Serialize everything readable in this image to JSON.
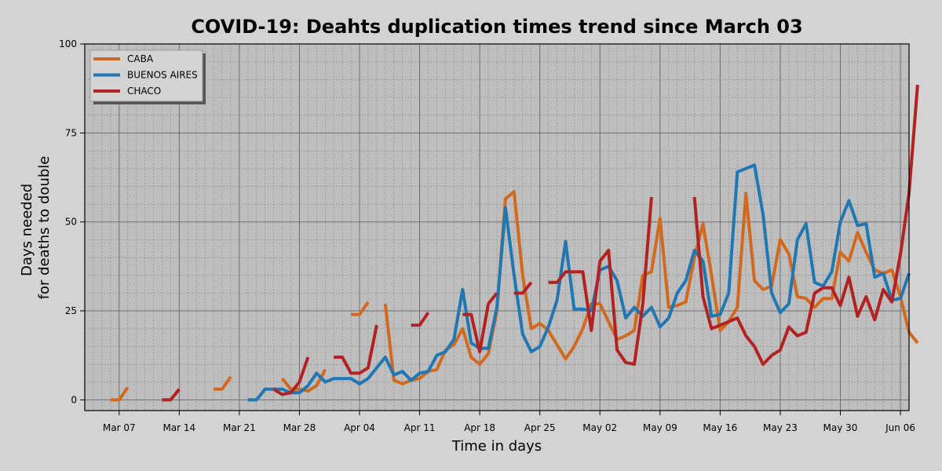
{
  "chart_data": {
    "type": "line",
    "title": "COVID-19: Deahts duplication times trend since March 03",
    "xlabel": "Time in days",
    "ylabel": [
      "Days needed",
      "for deaths to double"
    ],
    "x_start": "2020-03-03",
    "x_end": "2020-06-07",
    "ylim": [
      -3,
      100
    ],
    "yticks": [
      0,
      25,
      50,
      75,
      100
    ],
    "xticks": [
      {
        "date": "2020-03-07",
        "label": "Mar 07"
      },
      {
        "date": "2020-03-14",
        "label": "Mar 14"
      },
      {
        "date": "2020-03-21",
        "label": "Mar 21"
      },
      {
        "date": "2020-03-28",
        "label": "Mar 28"
      },
      {
        "date": "2020-04-04",
        "label": "Apr 04"
      },
      {
        "date": "2020-04-11",
        "label": "Apr 11"
      },
      {
        "date": "2020-04-18",
        "label": "Apr 18"
      },
      {
        "date": "2020-04-25",
        "label": "Apr 25"
      },
      {
        "date": "2020-05-02",
        "label": "May 02"
      },
      {
        "date": "2020-05-09",
        "label": "May 09"
      },
      {
        "date": "2020-05-16",
        "label": "May 16"
      },
      {
        "date": "2020-05-23",
        "label": "May 23"
      },
      {
        "date": "2020-05-30",
        "label": "May 30"
      },
      {
        "date": "2020-06-06",
        "label": "Jun 06"
      }
    ],
    "grid": true,
    "legend_position": "top-left",
    "series": [
      {
        "name": "CABA",
        "color": "#d2691e",
        "points": [
          [
            3,
            0
          ],
          [
            4,
            0
          ],
          [
            5,
            3.5
          ],
          [
            null,
            null
          ],
          [
            15,
            3
          ],
          [
            16,
            3
          ],
          [
            17,
            6.5
          ],
          [
            null,
            null
          ],
          [
            23,
            6
          ],
          [
            24,
            3
          ],
          [
            25,
            3
          ],
          [
            26,
            2.5
          ],
          [
            27,
            4
          ],
          [
            28,
            8.5
          ],
          [
            null,
            null
          ],
          [
            31,
            24
          ],
          [
            32,
            24
          ],
          [
            33,
            27.5
          ],
          [
            null,
            null
          ],
          [
            35,
            27
          ],
          [
            36,
            5.5
          ],
          [
            37,
            4.5
          ],
          [
            38,
            5.5
          ],
          [
            39,
            6
          ],
          [
            40,
            8
          ],
          [
            41,
            8.5
          ],
          [
            42,
            14
          ],
          [
            43,
            15.5
          ],
          [
            44,
            20
          ],
          [
            45,
            12
          ],
          [
            46,
            10
          ],
          [
            47,
            13
          ],
          [
            48,
            25
          ],
          [
            49,
            56.5
          ],
          [
            50,
            58.5
          ],
          [
            51,
            35
          ],
          [
            52,
            20
          ],
          [
            53,
            21.5
          ],
          [
            54,
            19.5
          ],
          [
            55,
            15.5
          ],
          [
            56,
            11.5
          ],
          [
            57,
            15
          ],
          [
            58,
            20
          ],
          [
            59,
            27
          ],
          [
            60,
            27
          ],
          [
            61,
            22
          ],
          [
            62,
            17
          ],
          [
            63,
            18
          ],
          [
            64,
            19.5
          ],
          [
            65,
            35
          ],
          [
            66,
            36
          ],
          [
            67,
            51
          ],
          [
            68,
            26
          ],
          [
            69,
            26.5
          ],
          [
            70,
            27.5
          ],
          [
            71,
            40
          ],
          [
            72,
            49.5
          ],
          [
            73,
            35
          ],
          [
            74,
            19.5
          ],
          [
            75,
            22
          ],
          [
            76,
            26
          ],
          [
            77,
            58
          ],
          [
            78,
            33.5
          ],
          [
            79,
            31
          ],
          [
            80,
            32
          ],
          [
            81,
            45
          ],
          [
            82,
            41
          ],
          [
            83,
            29
          ],
          [
            84,
            28.5
          ],
          [
            85,
            26
          ],
          [
            86,
            28.5
          ],
          [
            87,
            28.5
          ],
          [
            88,
            41.5
          ],
          [
            89,
            39
          ],
          [
            90,
            47
          ],
          [
            91,
            41.5
          ],
          [
            92,
            36.5
          ],
          [
            93,
            35.5
          ],
          [
            94,
            36.5
          ],
          [
            95,
            29
          ],
          [
            96,
            19
          ],
          [
            97,
            16
          ]
        ]
      },
      {
        "name": "BUENOS AIRES",
        "color": "#1f77b4",
        "points": [
          [
            19,
            0
          ],
          [
            20,
            0
          ],
          [
            21,
            3
          ],
          [
            22,
            3
          ],
          [
            23,
            3
          ],
          [
            24,
            2
          ],
          [
            25,
            2
          ],
          [
            26,
            4
          ],
          [
            27,
            7.5
          ],
          [
            28,
            5
          ],
          [
            29,
            6
          ],
          [
            30,
            6
          ],
          [
            31,
            6
          ],
          [
            32,
            4.5
          ],
          [
            33,
            6
          ],
          [
            34,
            9
          ],
          [
            35,
            12
          ],
          [
            36,
            7
          ],
          [
            37,
            8
          ],
          [
            38,
            5.5
          ],
          [
            39,
            7.5
          ],
          [
            40,
            8
          ],
          [
            41,
            12.5
          ],
          [
            42,
            13.5
          ],
          [
            43,
            17
          ],
          [
            44,
            31
          ],
          [
            45,
            16
          ],
          [
            46,
            14.5
          ],
          [
            47,
            14.5
          ],
          [
            48,
            26
          ],
          [
            49,
            54
          ],
          [
            50,
            35
          ],
          [
            51,
            18.5
          ],
          [
            52,
            13.5
          ],
          [
            53,
            15
          ],
          [
            54,
            20.5
          ],
          [
            55,
            28
          ],
          [
            56,
            44.5
          ],
          [
            57,
            25.5
          ],
          [
            58,
            25.5
          ],
          [
            59,
            25
          ],
          [
            60,
            36.5
          ],
          [
            61,
            37.5
          ],
          [
            62,
            33.5
          ],
          [
            63,
            23
          ],
          [
            64,
            26
          ],
          [
            65,
            23.5
          ],
          [
            66,
            26
          ],
          [
            67,
            20.5
          ],
          [
            68,
            23
          ],
          [
            69,
            30
          ],
          [
            70,
            33.5
          ],
          [
            71,
            42
          ],
          [
            72,
            39
          ],
          [
            73,
            23.5
          ],
          [
            74,
            24
          ],
          [
            75,
            30
          ],
          [
            76,
            64
          ],
          [
            77,
            65
          ],
          [
            78,
            66
          ],
          [
            79,
            52
          ],
          [
            80,
            30
          ],
          [
            81,
            24.5
          ],
          [
            82,
            27
          ],
          [
            83,
            45
          ],
          [
            84,
            49.5
          ],
          [
            85,
            33
          ],
          [
            86,
            32
          ],
          [
            87,
            36
          ],
          [
            88,
            50
          ],
          [
            89,
            56
          ],
          [
            90,
            49
          ],
          [
            91,
            49.5
          ],
          [
            92,
            34.5
          ],
          [
            93,
            35.5
          ],
          [
            94,
            28
          ],
          [
            95,
            28.5
          ],
          [
            96,
            35.5
          ]
        ]
      },
      {
        "name": "CHACO",
        "color": "#b22222",
        "points": [
          [
            9,
            0
          ],
          [
            10,
            0
          ],
          [
            11,
            3
          ],
          [
            null,
            null
          ],
          [
            22,
            3
          ],
          [
            23,
            1.5
          ],
          [
            24,
            2
          ],
          [
            25,
            5
          ],
          [
            26,
            12
          ],
          [
            null,
            null
          ],
          [
            29,
            12
          ],
          [
            30,
            12
          ],
          [
            31,
            7.5
          ],
          [
            32,
            7.5
          ],
          [
            33,
            9
          ],
          [
            34,
            21
          ],
          [
            null,
            null
          ],
          [
            38,
            21
          ],
          [
            39,
            21
          ],
          [
            40,
            24.5
          ],
          [
            null,
            null
          ],
          [
            44,
            24
          ],
          [
            45,
            24
          ],
          [
            46,
            13.5
          ],
          [
            47,
            27
          ],
          [
            48,
            30
          ],
          [
            null,
            null
          ],
          [
            50,
            30
          ],
          [
            51,
            30
          ],
          [
            52,
            33
          ],
          [
            null,
            null
          ],
          [
            54,
            33
          ],
          [
            55,
            33
          ],
          [
            56,
            36
          ],
          [
            57,
            36
          ],
          [
            58,
            36
          ],
          [
            59,
            19.5
          ],
          [
            60,
            39
          ],
          [
            61,
            42
          ],
          [
            62,
            14
          ],
          [
            63,
            10.5
          ],
          [
            64,
            10
          ],
          [
            65,
            27
          ],
          [
            66,
            57
          ],
          [
            null,
            null
          ],
          [
            71,
            57
          ],
          [
            72,
            29
          ],
          [
            73,
            20
          ],
          [
            74,
            21
          ],
          [
            75,
            22
          ],
          [
            76,
            23
          ],
          [
            77,
            18
          ],
          [
            78,
            15
          ],
          [
            79,
            10
          ],
          [
            80,
            12.5
          ],
          [
            81,
            14
          ],
          [
            82,
            20.5
          ],
          [
            83,
            18
          ],
          [
            84,
            19
          ],
          [
            85,
            30
          ],
          [
            86,
            31.5
          ],
          [
            87,
            31.5
          ],
          [
            88,
            26.5
          ],
          [
            89,
            34.5
          ],
          [
            90,
            23.5
          ],
          [
            91,
            29
          ],
          [
            92,
            22.5
          ],
          [
            93,
            31
          ],
          [
            94,
            27.5
          ],
          [
            95,
            41
          ],
          [
            96,
            58
          ],
          [
            97,
            88.5
          ]
        ]
      }
    ]
  }
}
